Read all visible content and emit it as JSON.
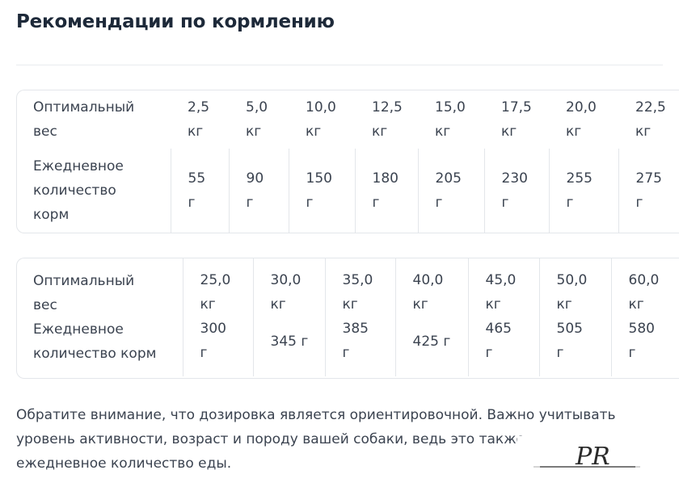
{
  "title": "Рекомендации по кормлению",
  "table1": {
    "row_weight_label": [
      "Оптимальный",
      "вес"
    ],
    "row_amount_label": [
      "Ежедневное",
      "количество",
      "корм"
    ],
    "columns": [
      {
        "weight": [
          "2,5",
          "кг"
        ],
        "amount": [
          "55",
          "г"
        ]
      },
      {
        "weight": [
          "5,0",
          "кг"
        ],
        "amount": [
          "90",
          "г"
        ]
      },
      {
        "weight": [
          "10,0",
          "кг"
        ],
        "amount": [
          "150",
          "г"
        ]
      },
      {
        "weight": [
          "12,5",
          "кг"
        ],
        "amount": [
          "180",
          "г"
        ]
      },
      {
        "weight": [
          "15,0",
          "кг"
        ],
        "amount": [
          "205",
          "г"
        ]
      },
      {
        "weight": [
          "17,5",
          "кг"
        ],
        "amount": [
          "230",
          "г"
        ]
      },
      {
        "weight": [
          "20,0",
          "кг"
        ],
        "amount": [
          "255",
          "г"
        ]
      },
      {
        "weight": [
          "22,5",
          "кг"
        ],
        "amount": [
          "275",
          "г"
        ]
      }
    ]
  },
  "table2": {
    "row_weight_label": [
      "Оптимальный",
      "вес"
    ],
    "row_amount_label": [
      "Ежедневное",
      "количество корм"
    ],
    "columns": [
      {
        "weight": [
          "25,0",
          "кг"
        ],
        "amount": [
          "300",
          "г"
        ]
      },
      {
        "weight": [
          "30,0",
          "кг"
        ],
        "amount": [
          "345 г"
        ]
      },
      {
        "weight": [
          "35,0",
          "кг"
        ],
        "amount": [
          "385",
          "г"
        ]
      },
      {
        "weight": [
          "40,0",
          "кг"
        ],
        "amount": [
          "425 г"
        ]
      },
      {
        "weight": [
          "45,0",
          "кг"
        ],
        "amount": [
          "465",
          "г"
        ]
      },
      {
        "weight": [
          "50,0",
          "кг"
        ],
        "amount": [
          "505",
          "г"
        ]
      },
      {
        "weight": [
          "60,0",
          "кг"
        ],
        "amount": [
          "580",
          "г"
        ]
      }
    ]
  },
  "note": {
    "lines": [
      "Обратите внимание, что дозировка является ориентировочной. Важно учитывать",
      "уровень активности, возраст и породу вашей собаки, ведь это также",
      "ежедневное количество еды."
    ]
  },
  "watermark": {
    "text": "PR",
    "color": "#2b2b2b",
    "icon": "monogram-logo-icon"
  }
}
